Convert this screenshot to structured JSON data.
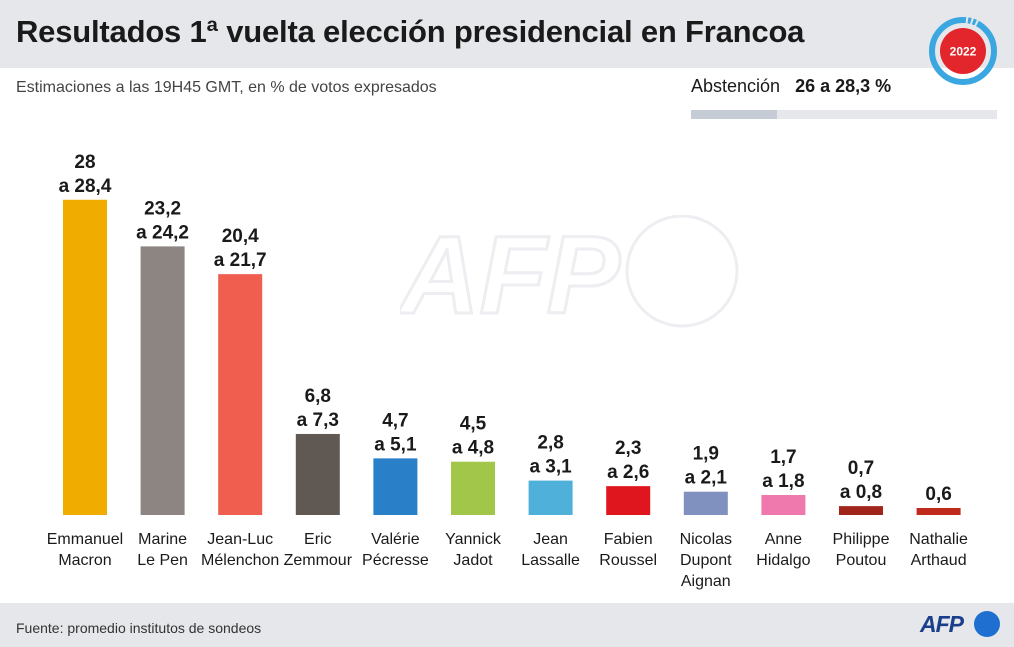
{
  "header": {
    "title": "Resultados 1ª vuelta elección presidencial en Francoa",
    "badge_year": "2022"
  },
  "subtitle": "Estimaciones a las 19H45 GMT, en % de votos expresados",
  "abstention": {
    "label": "Abstención",
    "value": "26 a 28,3 %",
    "fraction": 0.28
  },
  "watermark": "AFP",
  "footer": {
    "source": "Fuente: promedio institutos de sondeos",
    "logo": "AFP"
  },
  "chart_data": {
    "type": "bar",
    "title": "Resultados 1ª vuelta elección presidencial en Francoa",
    "subtitle": "Estimaciones a las 19H45 GMT, en % de votos expresados",
    "ylim": [
      0,
      30
    ],
    "grid": false,
    "categories": [
      [
        "Emmanuel",
        "Macron"
      ],
      [
        "Marine",
        "Le Pen"
      ],
      [
        "Jean-Luc",
        "Mélenchon"
      ],
      [
        "Eric",
        "Zemmour"
      ],
      [
        "Valérie",
        "Pécresse"
      ],
      [
        "Yannick",
        "Jadot"
      ],
      [
        "Jean",
        "Lassalle"
      ],
      [
        "Fabien",
        "Roussel"
      ],
      [
        "Nicolas",
        "Dupont",
        "Aignan"
      ],
      [
        "Anne",
        "Hidalgo"
      ],
      [
        "Philippe",
        "Poutou"
      ],
      [
        "Nathalie",
        "Arthaud"
      ]
    ],
    "values": [
      28.4,
      24.2,
      21.7,
      7.3,
      5.1,
      4.8,
      3.1,
      2.6,
      2.1,
      1.8,
      0.8,
      0.6
    ],
    "range_low": [
      28,
      23.2,
      20.4,
      6.8,
      4.7,
      4.5,
      2.8,
      2.3,
      1.9,
      1.7,
      0.7,
      0.6
    ],
    "data_labels": [
      [
        "28",
        "a 28,4"
      ],
      [
        "23,2",
        "a 24,2"
      ],
      [
        "20,4",
        "a 21,7"
      ],
      [
        "6,8",
        "a 7,3"
      ],
      [
        "4,7",
        "a 5,1"
      ],
      [
        "4,5",
        "a 4,8"
      ],
      [
        "2,8",
        "a 3,1"
      ],
      [
        "2,3",
        "a 2,6"
      ],
      [
        "1,9",
        "a 2,1"
      ],
      [
        "1,7",
        "a 1,8"
      ],
      [
        "0,7",
        "a 0,8"
      ],
      [
        "0,6"
      ]
    ],
    "colors": [
      "#f1ac00",
      "#8c8582",
      "#ef5e4f",
      "#605852",
      "#2a7fc9",
      "#a2c64a",
      "#4fb0d9",
      "#e0161e",
      "#8090bf",
      "#ef78ac",
      "#a1251a",
      "#c02a1d"
    ]
  }
}
